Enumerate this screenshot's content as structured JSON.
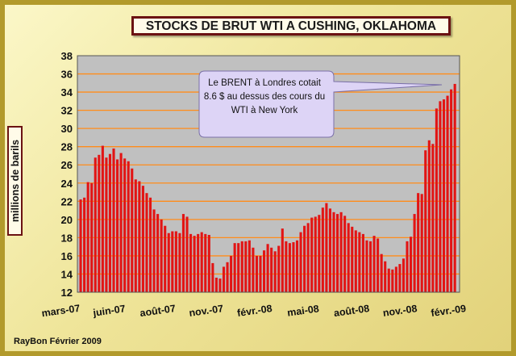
{
  "chart_data": {
    "type": "bar",
    "title": "STOCKS DE BRUT WTI  A CUSHING, OKLAHOMA",
    "ylabel": "millions de barils",
    "xlabel": "",
    "ylim": [
      12,
      38
    ],
    "yticks": [
      12,
      14,
      16,
      18,
      20,
      22,
      24,
      26,
      28,
      30,
      32,
      34,
      36,
      38
    ],
    "x_tick_labels": [
      "mars-07",
      "juin-07",
      "août-07",
      "nov.-07",
      "févr.-08",
      "mai-08",
      "août-08",
      "nov.-08",
      "févr.-09"
    ],
    "grid": true,
    "bar_color": "#e21414",
    "plot_background": "#c0c0c0",
    "gridline_color": "#ff8c1a",
    "values": [
      22.2,
      22.4,
      24.1,
      24.0,
      26.8,
      27.1,
      28.1,
      26.8,
      27.2,
      27.8,
      26.6,
      27.3,
      26.7,
      26.4,
      25.6,
      24.4,
      24.2,
      23.7,
      22.9,
      22.4,
      21.1,
      20.6,
      20.0,
      19.3,
      18.5,
      18.7,
      18.7,
      18.5,
      20.6,
      20.3,
      18.4,
      18.2,
      18.4,
      18.6,
      18.4,
      18.3,
      15.2,
      13.6,
      13.5,
      14.8,
      15.3,
      16.0,
      17.4,
      17.4,
      17.6,
      17.6,
      17.7,
      16.9,
      16.0,
      16.0,
      16.6,
      17.3,
      16.9,
      16.5,
      17.1,
      19.0,
      17.6,
      17.4,
      17.5,
      17.7,
      18.6,
      19.3,
      19.6,
      20.2,
      20.3,
      20.5,
      21.3,
      21.8,
      21.2,
      20.8,
      20.6,
      20.8,
      20.4,
      19.6,
      19.2,
      18.8,
      18.6,
      18.4,
      17.7,
      17.6,
      18.2,
      17.9,
      16.2,
      15.4,
      14.6,
      14.5,
      14.8,
      15.1,
      15.7,
      17.6,
      18.1,
      20.6,
      22.9,
      22.8,
      27.6,
      28.7,
      28.3,
      32.2,
      33.0,
      33.2,
      33.6,
      34.3,
      34.9
    ],
    "annotation": "Le BRENT à Londres cotait  8.6 $ au dessus des cours du WTI à New York"
  },
  "credit": "RayBon Février 2009"
}
